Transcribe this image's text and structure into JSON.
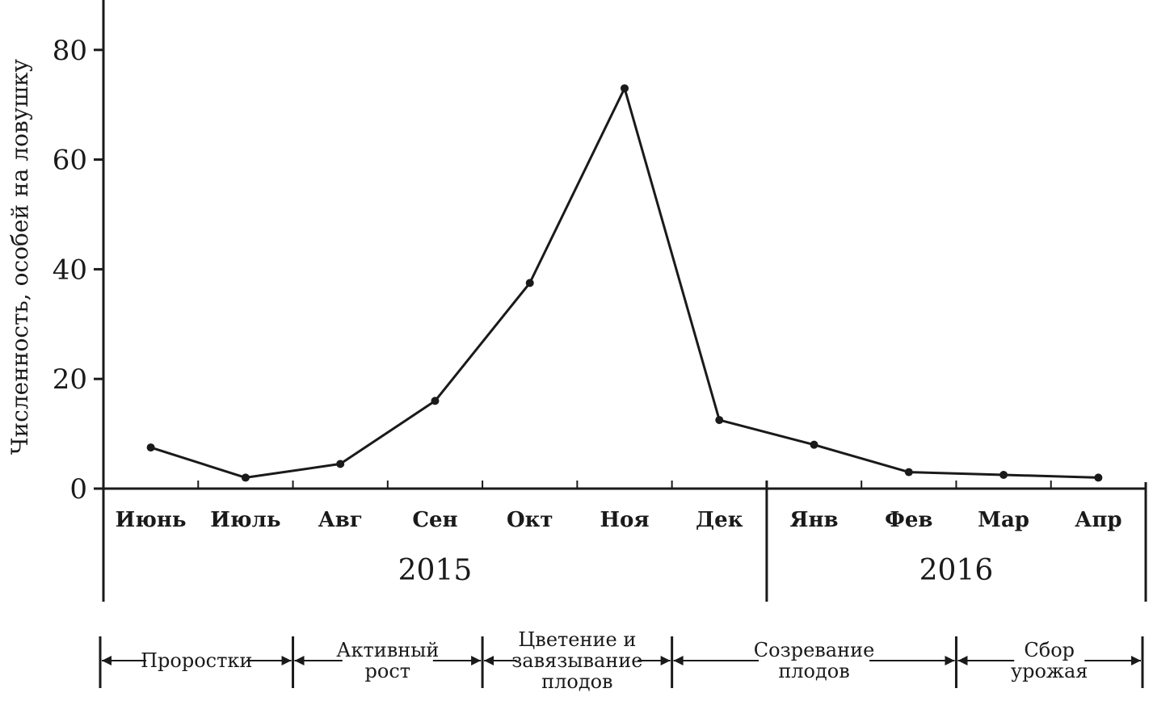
{
  "chart_data": {
    "type": "line",
    "ylabel": "Численность, особей на ловушку",
    "xlabel": "",
    "ylim": [
      0,
      88
    ],
    "yticks": [
      0,
      20,
      40,
      60,
      80
    ],
    "grid": false,
    "categories": [
      "Июнь",
      "Июль",
      "Авг",
      "Сен",
      "Окт",
      "Ноя",
      "Дек",
      "Янв",
      "Фев",
      "Мар",
      "Апр"
    ],
    "series": [
      {
        "values": [
          7.5,
          2,
          4.5,
          16,
          37.5,
          73,
          12.5,
          8,
          3,
          2.5,
          2
        ]
      }
    ],
    "years": [
      {
        "label": "2015",
        "from": 0,
        "to": 6
      },
      {
        "label": "2016",
        "from": 7,
        "to": 10
      }
    ],
    "phases": [
      {
        "lines": [
          "Проростки"
        ],
        "from": 0,
        "to": 2
      },
      {
        "lines": [
          "Активный",
          "рост"
        ],
        "from": 2,
        "to": 4
      },
      {
        "lines": [
          "Цветение и",
          "завязывание",
          "плодов"
        ],
        "from": 4,
        "to": 6
      },
      {
        "lines": [
          "Созревание",
          "плодов"
        ],
        "from": 6,
        "to": 9
      },
      {
        "lines": [
          "Сбор",
          "урожая"
        ],
        "from": 9,
        "to": 11
      }
    ]
  }
}
